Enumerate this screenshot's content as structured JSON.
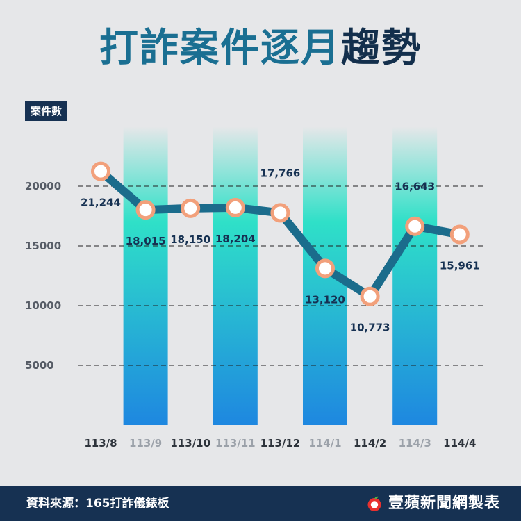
{
  "title": {
    "part1": "打詐案件逐月",
    "part2": "趨勢"
  },
  "unit_label": "案件數",
  "footer": {
    "source": "資料來源：165打詐儀錶板",
    "brand": "壹蘋新聞網製表"
  },
  "colors": {
    "background": "#e6e7e9",
    "title_main": "#1a6f92",
    "title_accent": "#132f4c",
    "line": "#1b6c8c",
    "marker_fill": "#ffffff",
    "marker_stroke": "#f2a07b",
    "label": "#163152",
    "bar_top": "#2fe0c8",
    "bar_bottom": "#1e87e0",
    "footer_bg": "#163152"
  },
  "chart_data": {
    "type": "line",
    "title": "打詐案件逐月趨勢",
    "ylabel": "案件數",
    "xlabel": "",
    "categories": [
      "113/8",
      "113/9",
      "113/10",
      "113/11",
      "113/12",
      "114/1",
      "114/2",
      "114/3",
      "114/4"
    ],
    "series": [
      {
        "values": [
          21244,
          18015,
          18150,
          18204,
          17766,
          13120,
          10773,
          16643,
          15961
        ]
      }
    ],
    "data_labels": [
      "21,244",
      "18,015",
      "18,150",
      "18,204",
      "17,766",
      "13,120",
      "10,773",
      "16,643",
      "15,961"
    ],
    "yticks": [
      5000,
      10000,
      15000,
      20000
    ],
    "ytick_labels": [
      "5000",
      "10000",
      "15000",
      "20000"
    ],
    "ylim": [
      0,
      25000
    ],
    "grid": "dashed horizontal",
    "highlighted_categories": [
      "113/9",
      "113/11",
      "114/1",
      "114/3"
    ]
  }
}
